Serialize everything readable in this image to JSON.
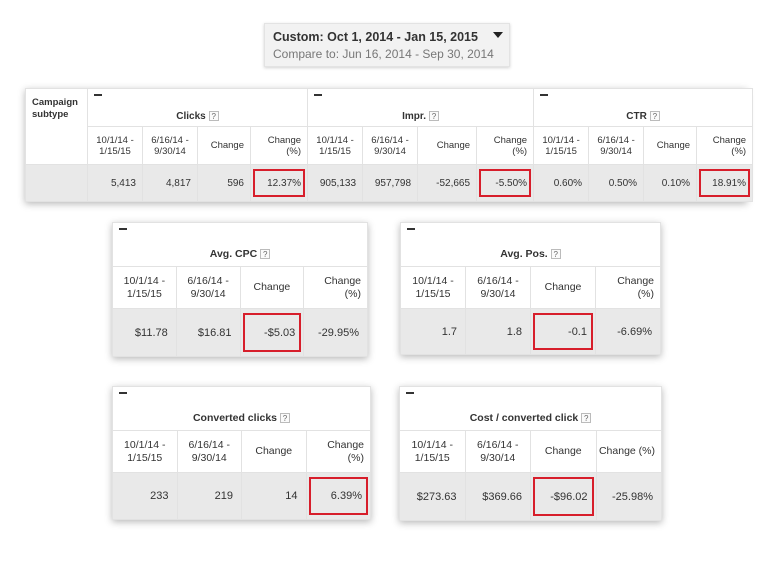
{
  "date_range": {
    "selected": "Custom: Oct 1, 2014 - Jan 15, 2015",
    "compare": "Compare to: Jun 16, 2014 - Sep 30, 2014"
  },
  "help_glyph": "?",
  "collapse_glyph": "—",
  "main_table": {
    "label": "Campaign subtype",
    "groups": [
      {
        "title": "Clicks",
        "cols": [
          "10/1/14 - 1/15/15",
          "6/16/14 - 9/30/14",
          "Change",
          "Change (%)"
        ],
        "values": [
          "5,413",
          "4,817",
          "596",
          "12.37%"
        ]
      },
      {
        "title": "Impr.",
        "cols": [
          "10/1/14 - 1/15/15",
          "6/16/14 - 9/30/14",
          "Change",
          "Change (%)"
        ],
        "values": [
          "905,133",
          "957,798",
          "-52,665",
          "-5.50%"
        ]
      },
      {
        "title": "CTR",
        "cols": [
          "10/1/14 - 1/15/15",
          "6/16/14 - 9/30/14",
          "Change",
          "Change (%)"
        ],
        "values": [
          "0.60%",
          "0.50%",
          "0.10%",
          "18.91%"
        ]
      }
    ]
  },
  "avg_cpc": {
    "title": "Avg. CPC",
    "cols": [
      "10/1/14 - 1/15/15",
      "6/16/14 - 9/30/14",
      "Change",
      "Change (%)"
    ],
    "values": [
      "$11.78",
      "$16.81",
      "-$5.03",
      "-29.95%"
    ]
  },
  "avg_pos": {
    "title": "Avg. Pos.",
    "cols": [
      "10/1/14 - 1/15/15",
      "6/16/14 - 9/30/14",
      "Change",
      "Change (%)"
    ],
    "values": [
      "1.7",
      "1.8",
      "-0.1",
      "-6.69%"
    ]
  },
  "converted_clicks": {
    "title": "Converted clicks",
    "cols": [
      "10/1/14 - 1/15/15",
      "6/16/14 - 9/30/14",
      "Change",
      "Change (%)"
    ],
    "values": [
      "233",
      "219",
      "14",
      "6.39%"
    ]
  },
  "cost_per_conv": {
    "title": "Cost / converted click",
    "cols": [
      "10/1/14 - 1/15/15",
      "6/16/14 - 9/30/14",
      "Change",
      "Change (%)"
    ],
    "values": [
      "$273.63",
      "$369.66",
      "-$96.02",
      "-25.98%"
    ]
  },
  "highlight_color": "#d71e2b"
}
